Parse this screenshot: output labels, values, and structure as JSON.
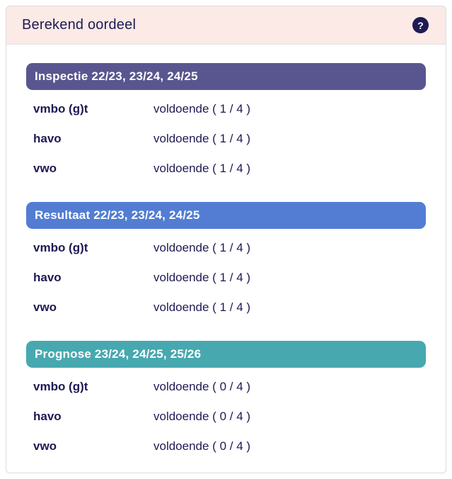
{
  "panel": {
    "title": "Berekend oordeel",
    "help_icon_glyph": "?"
  },
  "colors": {
    "header_bg": "#fbeae5",
    "text_navy": "#1e1a55",
    "inspectie_bar": "#59568f",
    "resultaat_bar": "#527dd2",
    "prognose_bar": "#47a8b0",
    "card_border": "#dcdcdc"
  },
  "sections": [
    {
      "title": "Inspectie 22/23, 23/24, 24/25",
      "color": "#59568f",
      "rows": [
        {
          "label": "vmbo (g)t",
          "value": "voldoende ( 1 / 4 )"
        },
        {
          "label": "havo",
          "value": "voldoende ( 1 / 4 )"
        },
        {
          "label": "vwo",
          "value": "voldoende ( 1 / 4 )"
        }
      ]
    },
    {
      "title": "Resultaat 22/23, 23/24, 24/25",
      "color": "#527dd2",
      "rows": [
        {
          "label": "vmbo (g)t",
          "value": "voldoende ( 1 / 4 )"
        },
        {
          "label": "havo",
          "value": "voldoende ( 1 / 4 )"
        },
        {
          "label": "vwo",
          "value": "voldoende ( 1 / 4 )"
        }
      ]
    },
    {
      "title": "Prognose 23/24, 24/25, 25/26",
      "color": "#47a8b0",
      "rows": [
        {
          "label": "vmbo (g)t",
          "value": "voldoende ( 0 / 4 )"
        },
        {
          "label": "havo",
          "value": "voldoende ( 0 / 4 )"
        },
        {
          "label": "vwo",
          "value": "voldoende ( 0 / 4 )"
        }
      ]
    }
  ]
}
